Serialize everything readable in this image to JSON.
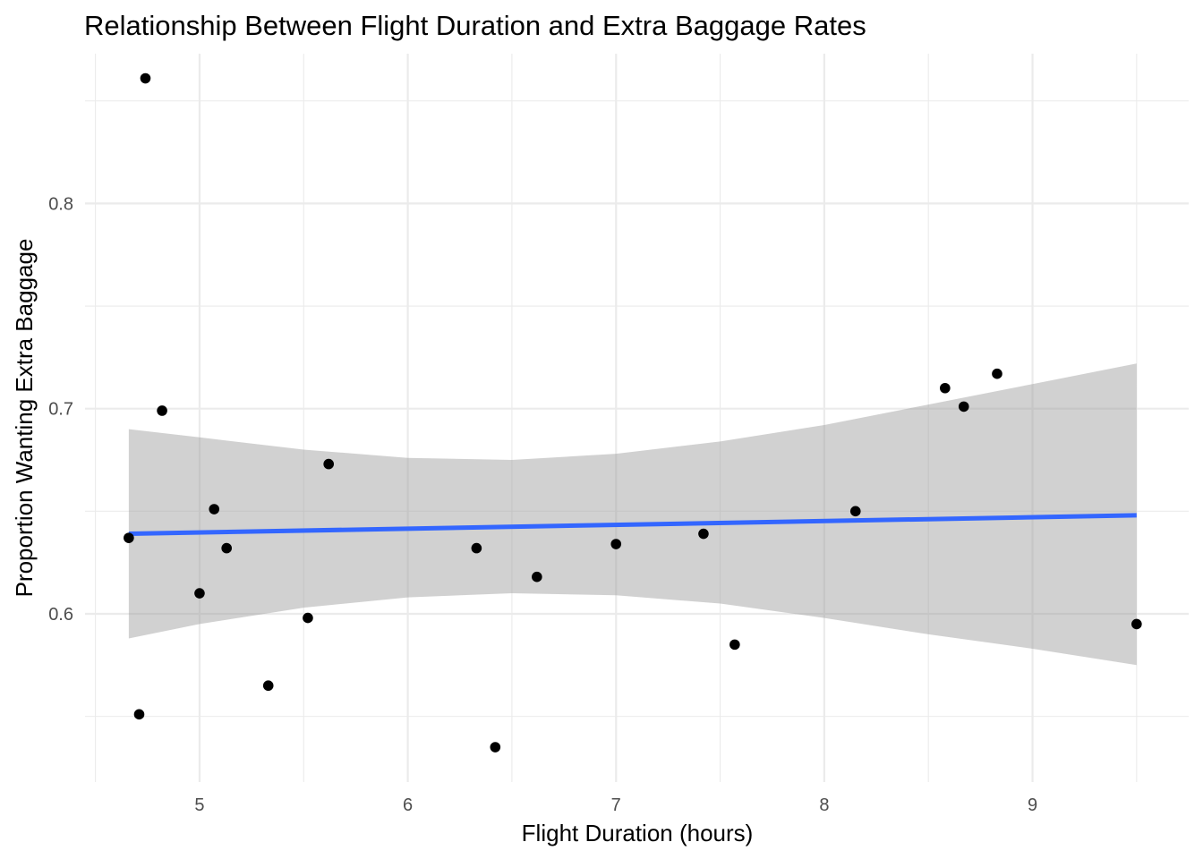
{
  "chart_data": {
    "type": "scatter",
    "title": "Relationship Between Flight Duration and Extra Baggage Rates",
    "xlabel": "Flight Duration (hours)",
    "ylabel": "Proportion Wanting Extra Baggage",
    "xlim": [
      4.45,
      9.75
    ],
    "ylim": [
      0.518,
      0.873
    ],
    "x_ticks": [
      5,
      6,
      7,
      8,
      9
    ],
    "x_tick_labels": [
      "5",
      "6",
      "7",
      "8",
      "9"
    ],
    "x_minor_ticks": [
      4.5,
      5.5,
      6.5,
      7.5,
      8.5,
      9.5
    ],
    "y_ticks": [
      0.6,
      0.7,
      0.8
    ],
    "y_tick_labels": [
      "0.6",
      "0.7",
      "0.8"
    ],
    "y_minor_ticks": [
      0.55,
      0.65,
      0.75,
      0.85
    ],
    "grid": true,
    "points": [
      {
        "x": 4.66,
        "y": 0.637
      },
      {
        "x": 4.71,
        "y": 0.551
      },
      {
        "x": 4.74,
        "y": 0.861
      },
      {
        "x": 4.82,
        "y": 0.699
      },
      {
        "x": 5.0,
        "y": 0.61
      },
      {
        "x": 5.07,
        "y": 0.651
      },
      {
        "x": 5.13,
        "y": 0.632
      },
      {
        "x": 5.33,
        "y": 0.565
      },
      {
        "x": 5.52,
        "y": 0.598
      },
      {
        "x": 5.62,
        "y": 0.673
      },
      {
        "x": 6.33,
        "y": 0.632
      },
      {
        "x": 6.42,
        "y": 0.535
      },
      {
        "x": 6.62,
        "y": 0.618
      },
      {
        "x": 7.0,
        "y": 0.634
      },
      {
        "x": 7.42,
        "y": 0.639
      },
      {
        "x": 7.57,
        "y": 0.585
      },
      {
        "x": 8.15,
        "y": 0.65
      },
      {
        "x": 8.58,
        "y": 0.71
      },
      {
        "x": 8.67,
        "y": 0.701
      },
      {
        "x": 8.83,
        "y": 0.717
      },
      {
        "x": 9.5,
        "y": 0.595
      }
    ],
    "trend_line": {
      "method": "lm",
      "x": [
        4.66,
        9.5
      ],
      "y": [
        0.639,
        0.648
      ],
      "color": "#3366FF"
    },
    "confidence_band": {
      "x": [
        4.66,
        5.0,
        5.5,
        6.0,
        6.5,
        7.0,
        7.5,
        8.0,
        8.5,
        9.0,
        9.5
      ],
      "lower": [
        0.588,
        0.595,
        0.603,
        0.608,
        0.61,
        0.609,
        0.605,
        0.598,
        0.59,
        0.583,
        0.575
      ],
      "upper": [
        0.69,
        0.686,
        0.68,
        0.676,
        0.675,
        0.678,
        0.684,
        0.692,
        0.702,
        0.712,
        0.722
      ],
      "color": "#999999"
    },
    "colors": {
      "points": "#000000",
      "grid": "#ebebeb",
      "band": "#999999",
      "line": "#3366FF"
    }
  }
}
